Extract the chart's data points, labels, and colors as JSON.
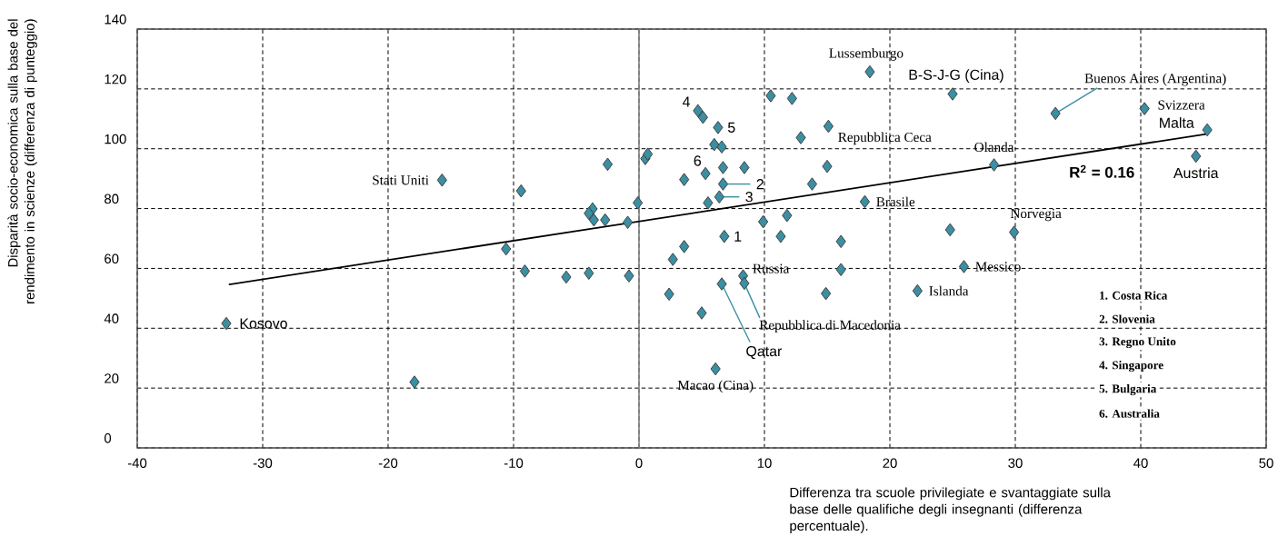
{
  "chart_data": {
    "type": "scatter",
    "xlabel": "Differenza tra scuole privilegiate e svantaggiate sulla base delle qualifiche degli insegnanti (differenza percentuale).",
    "ylabel": "Disparità socio-economica sulla base del rendimento in scienze (differenza di punteggio)",
    "xlim": [
      -40,
      50
    ],
    "xticks": [
      -40,
      -30,
      -20,
      -10,
      0,
      10,
      20,
      30,
      40,
      50
    ],
    "ylim": [
      0,
      140
    ],
    "yticks": [
      0,
      20,
      40,
      60,
      80,
      100,
      120,
      140
    ],
    "grid": true,
    "ref_lines": [
      {
        "axis": "x",
        "value": 0,
        "color": "#808080"
      }
    ],
    "series": [
      {
        "color": "#3a8fa3",
        "marker": "diamond",
        "x": [
          -32.9,
          -17.9,
          -15.7,
          -10.6,
          -9.4,
          -9.1,
          -5.8,
          -4.0,
          -3.7,
          -4.0,
          -3.6,
          -2.7,
          -2.5,
          -0.9,
          -0.8,
          -0.1,
          0.5,
          0.7,
          2.4,
          2.7,
          3.6,
          3.6,
          4.7,
          5.1,
          5.0,
          5.3,
          5.5,
          6.0,
          6.6,
          6.3,
          6.7,
          6.7,
          6.4,
          6.8,
          6.6,
          6.1,
          8.4,
          8.3,
          8.4,
          9.9,
          10.5,
          11.3,
          11.8,
          12.2,
          12.9,
          13.8,
          15.0,
          15.1,
          14.9,
          16.1,
          16.1,
          18.0,
          18.4,
          22.2,
          24.8,
          25.0,
          25.9,
          28.3,
          29.9,
          33.2,
          40.3,
          44.4,
          45.3
        ],
        "values": [
          41.6,
          22.0,
          89.5,
          66.5,
          85.9,
          59.1,
          57.1,
          58.4,
          79.9,
          78.4,
          76.2,
          76.2,
          94.8,
          75.4,
          57.5,
          81.9,
          96.7,
          98.2,
          51.4,
          63.0,
          67.3,
          89.7,
          112.7,
          110.5,
          45.1,
          91.7,
          81.9,
          101.4,
          100.6,
          107.1,
          93.7,
          88.2,
          83.9,
          70.7,
          54.8,
          26.4,
          93.7,
          57.5,
          55.0,
          75.6,
          117.7,
          70.7,
          77.7,
          116.8,
          103.7,
          88.2,
          94.1,
          107.5,
          51.6,
          69.0,
          59.6,
          82.3,
          125.7,
          52.5,
          72.9,
          118.3,
          60.6,
          94.6,
          72.1,
          111.8,
          113.4,
          97.5,
          106.3
        ]
      },
      {
        "type": "line",
        "color": "#000000",
        "marker": "none",
        "x": [
          -32.7,
          45.2
        ],
        "values": [
          54.6,
          104.9
        ]
      }
    ],
    "annotations": [
      {
        "text": "Lussemburgo",
        "x": 18.4,
        "y": 125.7
      },
      {
        "text": "B-S-J-G (Cina)",
        "x": 25.0,
        "y": 118.3
      },
      {
        "text": "Buenos Aires (Argentina)",
        "x": 33.2,
        "y": 111.8
      },
      {
        "text": "Svizzera",
        "x": 40.3,
        "y": 113.4
      },
      {
        "text": "Malta",
        "x": 45.3,
        "y": 106.3
      },
      {
        "text": "Austria",
        "x": 44.4,
        "y": 97.5
      },
      {
        "text": "Olanda",
        "x": 28.3,
        "y": 94.6
      },
      {
        "text": "Repubblica Ceca",
        "x": 15.1,
        "y": 107.5
      },
      "R$^{2}$ = 0.16",
      {
        "text": "Brasile",
        "x": 18.0,
        "y": 82.3
      },
      {
        "text": "Norvegia",
        "x": 29.9,
        "y": 72.1
      },
      {
        "text": "Messico",
        "x": 25.9,
        "y": 60.6
      },
      {
        "text": "Islanda",
        "x": 22.2,
        "y": 52.5
      },
      {
        "text": "Russia",
        "x": 8.3,
        "y": 57.5
      },
      {
        "text": "Repubblica di Macedonia",
        "x": 8.4,
        "y": 55.0
      },
      {
        "text": "Qatar",
        "x": 6.6,
        "y": 54.8
      },
      {
        "text": "Macao (Cina)",
        "x": 6.1,
        "y": 26.4
      },
      {
        "text": "Stati Uniti",
        "x": -15.7,
        "y": 89.5
      },
      {
        "text": "Kosovo",
        "x": -32.9,
        "y": 41.6
      },
      {
        "text": "1",
        "x": 6.8,
        "y": 70.7
      },
      {
        "text": "2",
        "x": 6.7,
        "y": 88.2
      },
      {
        "text": "3",
        "x": 6.4,
        "y": 83.9
      },
      {
        "text": "4",
        "x": 4.7,
        "y": 112.7
      },
      {
        "text": "5",
        "x": 6.3,
        "y": 107.1
      },
      {
        "text": "6",
        "x": 5.3,
        "y": 91.7
      },
      "1. Costa Rica",
      "2. Slovenia",
      "3. Regno Unito",
      "4. Singapore",
      "5. Bulgaria",
      "6. Australia"
    ]
  }
}
